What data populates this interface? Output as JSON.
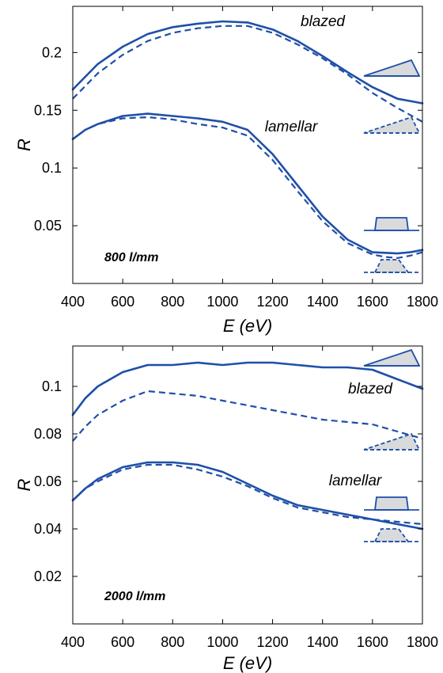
{
  "chart_data": [
    {
      "type": "line",
      "xlabel": "E",
      "xunit": "(eV)",
      "ylabel": "R",
      "xlim": [
        400,
        1800
      ],
      "ylim": [
        0.0,
        0.24
      ],
      "xticks": [
        400,
        600,
        800,
        1000,
        1200,
        1400,
        1600,
        1800
      ],
      "yticks": [
        0.05,
        0.1,
        0.15,
        0.2
      ],
      "ytick_labels": [
        "0.05",
        "0.1",
        "0.15",
        "0.2"
      ],
      "annotation": "800 l/mm",
      "labels": [
        "blazed",
        "lamellar"
      ],
      "series": [
        {
          "group": "blazed",
          "style": "solid",
          "x": [
            400,
            500,
            600,
            700,
            800,
            900,
            1000,
            1100,
            1200,
            1300,
            1400,
            1500,
            1600,
            1700,
            1800
          ],
          "y": [
            0.168,
            0.19,
            0.205,
            0.216,
            0.222,
            0.225,
            0.227,
            0.226,
            0.22,
            0.21,
            0.197,
            0.183,
            0.17,
            0.16,
            0.156
          ]
        },
        {
          "group": "blazed",
          "style": "dashed",
          "x": [
            400,
            500,
            600,
            700,
            800,
            900,
            1000,
            1100,
            1200,
            1300,
            1400,
            1500,
            1600,
            1700,
            1800
          ],
          "y": [
            0.16,
            0.182,
            0.198,
            0.21,
            0.217,
            0.221,
            0.223,
            0.223,
            0.217,
            0.207,
            0.195,
            0.181,
            0.165,
            0.152,
            0.14
          ]
        },
        {
          "group": "lamellar",
          "style": "solid",
          "x": [
            400,
            450,
            500,
            600,
            700,
            800,
            900,
            1000,
            1100,
            1200,
            1300,
            1400,
            1500,
            1600,
            1700,
            1750,
            1800
          ],
          "y": [
            0.125,
            0.133,
            0.138,
            0.145,
            0.147,
            0.145,
            0.143,
            0.14,
            0.133,
            0.112,
            0.085,
            0.058,
            0.038,
            0.027,
            0.026,
            0.027,
            0.029
          ]
        },
        {
          "group": "lamellar",
          "style": "dashed",
          "x": [
            400,
            450,
            500,
            600,
            700,
            800,
            900,
            1000,
            1100,
            1200,
            1300,
            1400,
            1500,
            1600,
            1650,
            1700,
            1750,
            1800
          ],
          "y": [
            0.125,
            0.133,
            0.138,
            0.143,
            0.144,
            0.142,
            0.138,
            0.135,
            0.128,
            0.107,
            0.08,
            0.054,
            0.035,
            0.025,
            0.023,
            0.022,
            0.024,
            0.027
          ]
        }
      ]
    },
    {
      "type": "line",
      "xlabel": "E",
      "xunit": "(eV)",
      "ylabel": "R",
      "xlim": [
        400,
        1800
      ],
      "ylim": [
        0.0,
        0.117
      ],
      "xticks": [
        400,
        600,
        800,
        1000,
        1200,
        1400,
        1600,
        1800
      ],
      "yticks": [
        0.02,
        0.04,
        0.06,
        0.08,
        0.1
      ],
      "ytick_labels": [
        "0.02",
        "0.04",
        "0.06",
        "0.08",
        "0.1"
      ],
      "annotation": "2000 l/mm",
      "labels": [
        "blazed",
        "lamellar"
      ],
      "series": [
        {
          "group": "blazed",
          "style": "solid",
          "x": [
            400,
            450,
            500,
            600,
            700,
            800,
            900,
            1000,
            1100,
            1200,
            1300,
            1400,
            1500,
            1600,
            1700,
            1800
          ],
          "y": [
            0.088,
            0.095,
            0.1,
            0.106,
            0.109,
            0.109,
            0.11,
            0.109,
            0.11,
            0.11,
            0.109,
            0.108,
            0.108,
            0.107,
            0.103,
            0.099
          ]
        },
        {
          "group": "blazed",
          "style": "dashed",
          "x": [
            400,
            450,
            500,
            600,
            700,
            800,
            900,
            1000,
            1100,
            1200,
            1300,
            1400,
            1500,
            1600,
            1700,
            1800
          ],
          "y": [
            0.077,
            0.083,
            0.088,
            0.094,
            0.098,
            0.097,
            0.096,
            0.094,
            0.092,
            0.09,
            0.088,
            0.086,
            0.085,
            0.084,
            0.081,
            0.078
          ]
        },
        {
          "group": "lamellar",
          "style": "solid",
          "x": [
            400,
            450,
            500,
            600,
            700,
            800,
            900,
            1000,
            1100,
            1200,
            1300,
            1400,
            1500,
            1600,
            1700,
            1800
          ],
          "y": [
            0.052,
            0.057,
            0.061,
            0.066,
            0.068,
            0.068,
            0.067,
            0.064,
            0.059,
            0.054,
            0.05,
            0.048,
            0.046,
            0.044,
            0.042,
            0.04
          ]
        },
        {
          "group": "lamellar",
          "style": "dashed",
          "x": [
            400,
            450,
            500,
            600,
            700,
            800,
            900,
            1000,
            1100,
            1200,
            1300,
            1400,
            1500,
            1600,
            1700,
            1800
          ],
          "y": [
            0.052,
            0.057,
            0.06,
            0.065,
            0.067,
            0.067,
            0.065,
            0.062,
            0.058,
            0.053,
            0.049,
            0.047,
            0.045,
            0.044,
            0.043,
            0.042
          ]
        }
      ]
    }
  ],
  "colors": {
    "line": "#1f4fa8",
    "icon_fill": "#d9dadc"
  }
}
